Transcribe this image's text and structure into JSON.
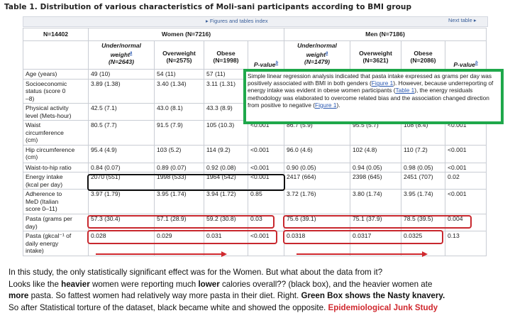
{
  "title": "Table 1. Distribution of various characteristics of Moli-sani participants according to BMI group",
  "nav": {
    "figures_link": "▸ Figures and tables index",
    "next_link": "Next table ▸"
  },
  "table": {
    "n_total": "N=14402",
    "women_header": "Women (N=7216)",
    "men_header": "Men (N=7186)",
    "women_cols": {
      "underweight_lines": [
        "Under/normal",
        "weight"
      ],
      "underweight_n": "(N=2643)",
      "overweight": "Overweight",
      "overweight_n": "(N=2575)",
      "obese": "Obese",
      "obese_n": "(N=1998)",
      "pvalue": "P-value"
    },
    "men_cols": {
      "underweight_lines": [
        "Under/normal",
        "weight"
      ],
      "underweight_n": "(N=1479)",
      "overweight": "Overweight",
      "overweight_n": "(N=3621)",
      "obese": "Obese",
      "obese_n": "(N=2086)",
      "pvalue": "P-value"
    },
    "footnote_marks": {
      "a": "a",
      "b": "b"
    },
    "rows": [
      {
        "label": [
          "Age (years)"
        ],
        "w": [
          "49 (10)",
          "54 (11)",
          "57 (11)",
          ""
        ],
        "m": [
          "",
          "",
          "",
          ""
        ]
      },
      {
        "label": [
          "Socioeconomic",
          "status (score 0",
          "–8)"
        ],
        "w": [
          "3.89 (1.38)",
          "3.40 (1.34)",
          "3.11 (1.31)",
          ""
        ],
        "m": [
          "",
          "",
          "",
          ""
        ]
      },
      {
        "label": [
          "Physical activity",
          "level (Mets-hour)"
        ],
        "w": [
          "42.5 (7.1)",
          "43.0 (8.1)",
          "43.3 (8.9)",
          ""
        ],
        "m": [
          "",
          "",
          "",
          ""
        ]
      },
      {
        "label": [
          "Waist",
          "circumference",
          "(cm)"
        ],
        "w": [
          "80.5 (7.7)",
          "91.5 (7.9)",
          "105 (10.3)",
          "<0.001"
        ],
        "m": [
          "86.7 (5.9)",
          "95.5 (5.7)",
          "108 (8.4)",
          "<0.001"
        ]
      },
      {
        "label": [
          "Hip circumference",
          "(cm)"
        ],
        "w": [
          "95.4 (4.9)",
          "103 (5.2)",
          "114 (9.2)",
          "<0.001"
        ],
        "m": [
          "96.0 (4.6)",
          "102 (4.8)",
          "110 (7.2)",
          "<0.001"
        ]
      },
      {
        "label": [
          "Waist-to-hip ratio"
        ],
        "w": [
          "0.84 (0.07)",
          "0.89 (0.07)",
          "0.92 (0.08)",
          "<0.001"
        ],
        "m": [
          "0.90 (0.05)",
          "0.94 (0.05)",
          "0.98 (0.05)",
          "<0.001"
        ]
      },
      {
        "label": [
          "Energy intake",
          "(kcal per day)"
        ],
        "w": [
          "2070 (551)",
          "1998 (533)",
          "1964 (542)",
          "<0.001"
        ],
        "m": [
          "2417 (664)",
          "2398 (645)",
          "2451 (707)",
          "0.02"
        ]
      },
      {
        "label": [
          "Adherence to",
          "MeD (Italian",
          "score 0–11)"
        ],
        "w": [
          "3.97 (1.79)",
          "3.95 (1.74)",
          "3.94 (1.72)",
          "0.85"
        ],
        "m": [
          "3.72 (1.76)",
          "3.80 (1.74)",
          "3.95 (1.74)",
          "<0.001"
        ]
      },
      {
        "label": [
          "Pasta (grams per",
          "day)"
        ],
        "w": [
          "57.3 (30.4)",
          "57.1 (28.9)",
          "59.2 (30.8)",
          "0.03"
        ],
        "m": [
          "75.6 (39.1)",
          "75.1 (37.9)",
          "78.5 (39.5)",
          "0.004"
        ]
      },
      {
        "label": [
          "Pasta (gkcal⁻¹ of",
          "daily energy",
          "intake)"
        ],
        "w": [
          "0.028",
          "0.029",
          "0.031",
          "<0.001"
        ],
        "m": [
          "0.0318",
          "0.0317",
          "0.0325",
          "0.13"
        ]
      }
    ]
  },
  "green_box": {
    "part1": "Simple linear regression analysis indicated that pasta intake expressed as grams per day was positively associated with BMI in both genders (",
    "link1": "Figure 1",
    "part2": "). However, because underreporting of energy intake was evident in obese women participants (",
    "link2": "Table 1",
    "part3": "), the energy residuals methodology was elaborated to overcome related bias and the association changed direction from positive to negative (",
    "link3": "Figure 1",
    "part4": ")."
  },
  "caption": {
    "line1": "In this study, the only statistically significant effect was for the Women. But what about the data from it?",
    "l2_a": "Looks like the ",
    "l2_heavier": "heavier",
    "l2_b": " women were reporting much ",
    "l2_lower": "lower",
    "l2_c": " calories overall?? (black box), and the heavier women ate",
    "l3_more": "more",
    "l3_a": " pasta. So fattest women had relatively way more pasta in their diet. Right. ",
    "l3_green": "Green Box shows the Nasty knavery.",
    "l4_a": "So after Statistical torture of the dataset, black became white and showed the opposite. ",
    "l4_red": "Epidemiological Junk Study"
  },
  "colors": {
    "green_box": "#1fa84b",
    "red": "#d0282e",
    "link": "#2a58b0"
  }
}
